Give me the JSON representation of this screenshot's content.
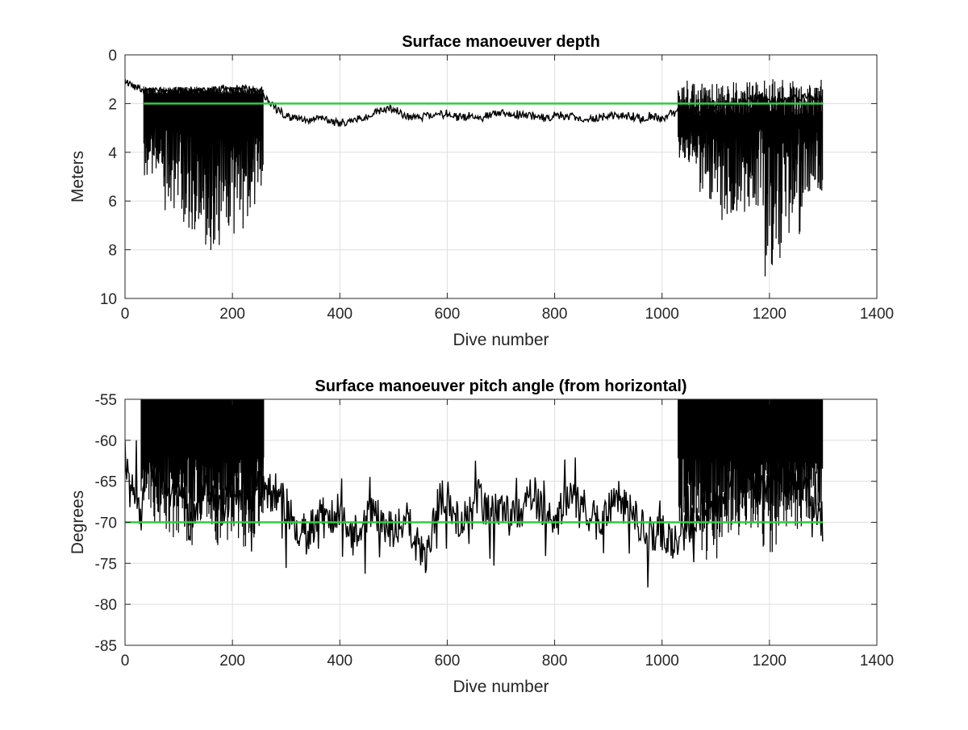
{
  "chart_data": [
    {
      "type": "line",
      "title": "Surface manoeuver depth",
      "xlabel": "Dive number",
      "ylabel": "Meters",
      "xlim": [
        0,
        1400
      ],
      "ylim": [
        0,
        10
      ],
      "y_reversed": true,
      "grid": true,
      "xticks": [
        "0",
        "200",
        "400",
        "600",
        "800",
        "1000",
        "1200",
        "1400"
      ],
      "yticks": [
        "0",
        "2",
        "4",
        "6",
        "8",
        "10"
      ],
      "series": [
        {
          "color": "#000000",
          "x": [
            0,
            10,
            20,
            30,
            35,
            40,
            60,
            80,
            100,
            120,
            140,
            160,
            180,
            200,
            220,
            240,
            255,
            260,
            280,
            300,
            320,
            340,
            360,
            380,
            400,
            420,
            440,
            460,
            480,
            500,
            520,
            540,
            560,
            580,
            600,
            620,
            640,
            660,
            680,
            700,
            720,
            740,
            760,
            780,
            800,
            820,
            840,
            860,
            880,
            900,
            920,
            940,
            960,
            980,
            1000,
            1020,
            1030,
            1040,
            1060,
            1080,
            1100,
            1120,
            1140,
            1160,
            1180,
            1200,
            1220,
            1240,
            1260,
            1280,
            1300
          ],
          "y": [
            1.0,
            1.2,
            1.3,
            1.4,
            1.5,
            1.5,
            1.5,
            1.5,
            1.5,
            1.5,
            1.5,
            1.5,
            1.4,
            1.4,
            1.4,
            1.5,
            1.5,
            1.8,
            2.2,
            2.5,
            2.6,
            2.7,
            2.6,
            2.7,
            2.8,
            2.7,
            2.6,
            2.4,
            2.2,
            2.2,
            2.5,
            2.6,
            2.5,
            2.5,
            2.4,
            2.6,
            2.5,
            2.6,
            2.5,
            2.4,
            2.5,
            2.4,
            2.5,
            2.6,
            2.5,
            2.5,
            2.6,
            2.6,
            2.6,
            2.5,
            2.5,
            2.5,
            2.6,
            2.5,
            2.6,
            2.4,
            2.3,
            2.4,
            2.3,
            2.2,
            2.1,
            2.0,
            2.0,
            1.9,
            1.8,
            1.8,
            1.9,
            1.8,
            1.8,
            1.7,
            1.7
          ],
          "dense_bands": [
            {
              "x_range": [
                35,
                258
              ],
              "upper": [
                1.3,
                1.6
              ],
              "lower_extremes": [
                5,
                6.5,
                7.2,
                8.5,
                7.5,
                6.8
              ]
            },
            {
              "x_range": [
                1030,
                1300
              ],
              "upper": [
                1.0,
                2.5
              ],
              "lower_extremes": [
                4.5,
                6,
                7.2,
                6.5,
                9.2,
                7.5,
                5.8
              ]
            }
          ]
        },
        {
          "color": "#2ecc40",
          "x": [
            35,
            1300
          ],
          "y": [
            2,
            2
          ]
        }
      ]
    },
    {
      "type": "line",
      "title": "Surface manoeuver pitch angle (from horizontal)",
      "xlabel": "Dive number",
      "ylabel": "Degrees",
      "xlim": [
        0,
        1400
      ],
      "ylim": [
        -85,
        -55
      ],
      "grid": true,
      "xticks": [
        "0",
        "200",
        "400",
        "600",
        "800",
        "1000",
        "1200",
        "1400"
      ],
      "yticks": [
        "-55",
        "-60",
        "-65",
        "-70",
        "-75",
        "-80",
        "-85"
      ],
      "series": [
        {
          "color": "#000000",
          "x": [
            0,
            10,
            20,
            30,
            40,
            60,
            80,
            100,
            120,
            140,
            160,
            180,
            200,
            220,
            240,
            255,
            260,
            280,
            300,
            320,
            340,
            360,
            380,
            400,
            420,
            440,
            460,
            480,
            500,
            520,
            540,
            560,
            580,
            600,
            620,
            640,
            660,
            680,
            700,
            720,
            740,
            760,
            780,
            800,
            820,
            840,
            860,
            880,
            900,
            920,
            940,
            960,
            980,
            1000,
            1020,
            1040,
            1060,
            1080,
            1100,
            1120,
            1140,
            1160,
            1180,
            1200,
            1220,
            1240,
            1260,
            1280,
            1300
          ],
          "y": [
            -62,
            -65,
            -68,
            -70,
            -62,
            -64,
            -65,
            -66,
            -70,
            -67,
            -66,
            -68,
            -67,
            -66,
            -65,
            -66,
            -67,
            -66,
            -68,
            -70,
            -72,
            -69,
            -70,
            -68,
            -72,
            -70,
            -68,
            -70,
            -71,
            -69,
            -72,
            -74,
            -68,
            -66,
            -70,
            -68,
            -67,
            -69,
            -68,
            -70,
            -68,
            -66,
            -69,
            -70,
            -68,
            -67,
            -69,
            -70,
            -68,
            -67,
            -69,
            -70,
            -72,
            -71,
            -72,
            -71,
            -70,
            -69,
            -68,
            -66,
            -64,
            -63,
            -66,
            -65,
            -64,
            -65,
            -66,
            -68,
            -70
          ],
          "dense_bands": [
            {
              "x_range": [
                30,
                258
              ],
              "upper": [
                -55,
                -55
              ],
              "lower_extremes": [
                -70,
                -72,
                -73,
                -71,
                -73,
                -74,
                -72
              ]
            },
            {
              "x_range": [
                1030,
                1300
              ],
              "upper": [
                -55,
                -55
              ],
              "lower_extremes": [
                -73,
                -75,
                -72,
                -71,
                -74,
                -71,
                -70
              ]
            }
          ]
        },
        {
          "color": "#2ecc40",
          "x": [
            0,
            1300
          ],
          "y": [
            -70,
            -70
          ]
        }
      ]
    }
  ]
}
